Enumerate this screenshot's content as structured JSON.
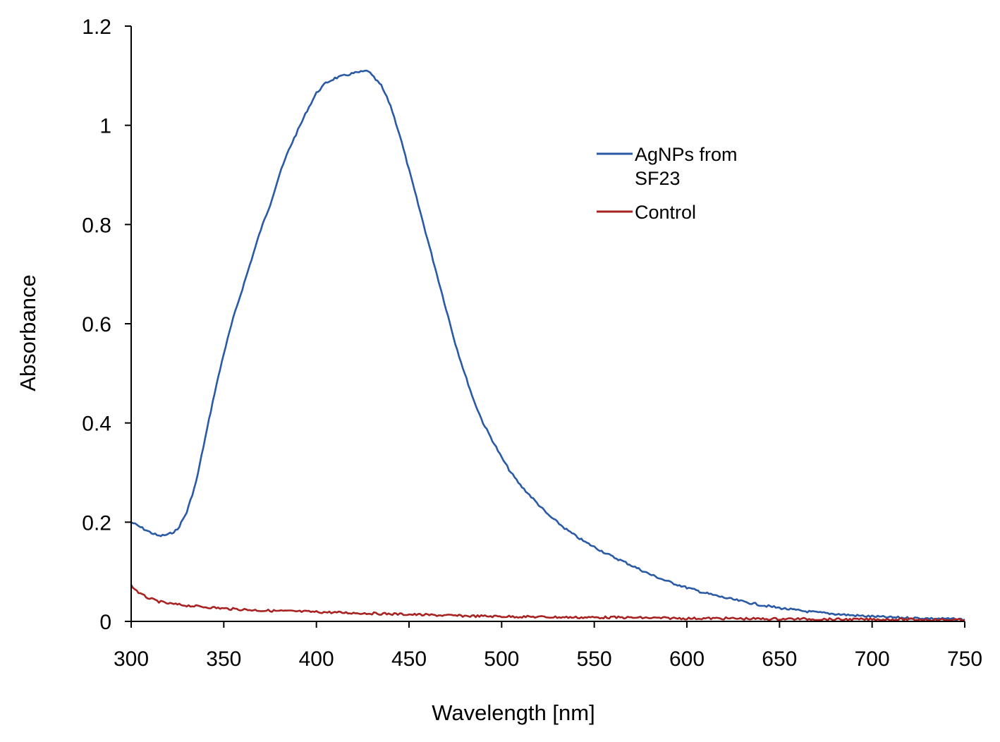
{
  "chart_data": {
    "type": "line",
    "title": "",
    "xlabel": "Wavelength [nm]",
    "ylabel": "Absorbance",
    "xlim": [
      300,
      750
    ],
    "ylim": [
      0,
      1.2
    ],
    "x_ticks": [
      "300",
      "350",
      "400",
      "450",
      "500",
      "550",
      "600",
      "650",
      "700",
      "750"
    ],
    "y_ticks": [
      "0",
      "0.2",
      "0.4",
      "0.6",
      "0.8",
      "1",
      "1.2"
    ],
    "grid": false,
    "legend_position": "top-right",
    "series": [
      {
        "name": "AgNPs from SF23",
        "legend_lines": [
          "AgNPs from",
          "SF23"
        ],
        "color": "#2A5AA6",
        "x": [
          300,
          305,
          310,
          315,
          320,
          325,
          330,
          335,
          340,
          345,
          350,
          355,
          360,
          365,
          370,
          375,
          380,
          385,
          390,
          395,
          400,
          405,
          410,
          415,
          420,
          425,
          428,
          430,
          435,
          440,
          445,
          450,
          455,
          460,
          465,
          470,
          475,
          480,
          485,
          490,
          495,
          500,
          505,
          510,
          515,
          520,
          525,
          530,
          535,
          540,
          545,
          550,
          555,
          560,
          565,
          570,
          580,
          590,
          600,
          610,
          620,
          630,
          640,
          650,
          660,
          670,
          680,
          690,
          700,
          710,
          720,
          730,
          740,
          750
        ],
        "y": [
          0.2,
          0.19,
          0.18,
          0.172,
          0.175,
          0.185,
          0.22,
          0.28,
          0.37,
          0.46,
          0.54,
          0.61,
          0.67,
          0.73,
          0.79,
          0.84,
          0.9,
          0.95,
          0.99,
          1.03,
          1.065,
          1.085,
          1.095,
          1.1,
          1.105,
          1.108,
          1.11,
          1.1,
          1.08,
          1.04,
          0.98,
          0.91,
          0.84,
          0.77,
          0.7,
          0.63,
          0.56,
          0.5,
          0.445,
          0.4,
          0.365,
          0.33,
          0.3,
          0.275,
          0.255,
          0.235,
          0.215,
          0.2,
          0.185,
          0.172,
          0.16,
          0.15,
          0.14,
          0.13,
          0.122,
          0.113,
          0.095,
          0.08,
          0.068,
          0.057,
          0.048,
          0.04,
          0.033,
          0.027,
          0.022,
          0.018,
          0.015,
          0.012,
          0.01,
          0.008,
          0.007,
          0.006,
          0.005,
          0.004
        ]
      },
      {
        "name": "Control",
        "legend_lines": [
          "Control"
        ],
        "color": "#A82222",
        "x": [
          300,
          305,
          310,
          315,
          320,
          330,
          340,
          350,
          360,
          370,
          380,
          390,
          400,
          420,
          440,
          460,
          480,
          500,
          520,
          540,
          560,
          580,
          600,
          620,
          640,
          660,
          680,
          700,
          720,
          740,
          750
        ],
        "y": [
          0.072,
          0.055,
          0.046,
          0.04,
          0.036,
          0.032,
          0.029,
          0.026,
          0.024,
          0.022,
          0.021,
          0.02,
          0.019,
          0.017,
          0.015,
          0.013,
          0.011,
          0.01,
          0.009,
          0.008,
          0.008,
          0.007,
          0.006,
          0.006,
          0.005,
          0.005,
          0.004,
          0.004,
          0.004,
          0.003,
          0.003
        ]
      }
    ]
  }
}
